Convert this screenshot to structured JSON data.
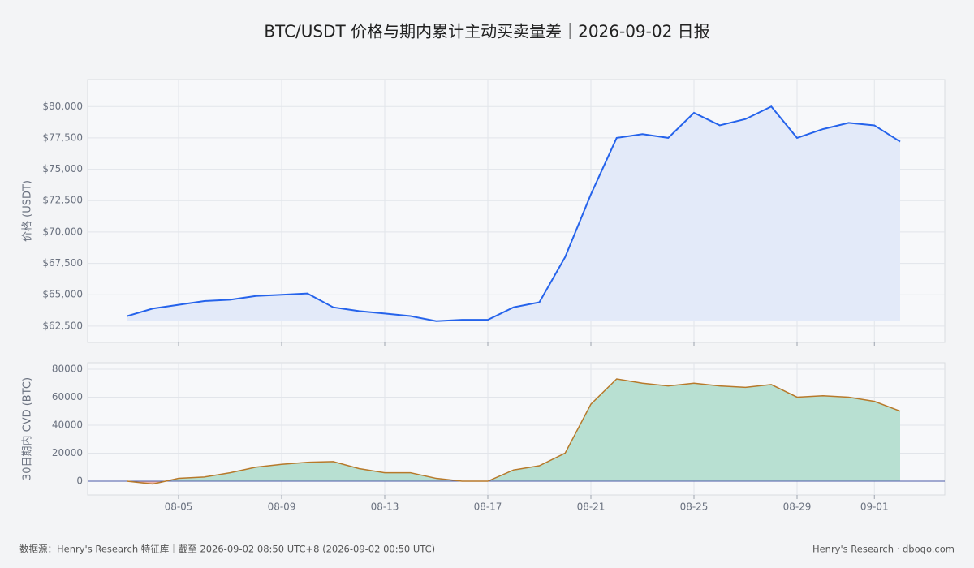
{
  "title": "BTC/USDT 价格与期内累计主动买卖量差｜2026-09-02 日报",
  "footer_left": "数据源：Henry's Research 特征库｜截至 2026-09-02 08:50 UTC+8 (2026-09-02 00:50 UTC)",
  "footer_right": "Henry's Research · dboqo.com",
  "chart_data": [
    {
      "type": "area",
      "y_label": "价格 (USDT)",
      "x": [
        "08-03",
        "08-04",
        "08-05",
        "08-06",
        "08-07",
        "08-08",
        "08-09",
        "08-10",
        "08-11",
        "08-12",
        "08-13",
        "08-14",
        "08-15",
        "08-16",
        "08-17",
        "08-18",
        "08-19",
        "08-20",
        "08-21",
        "08-22",
        "08-23",
        "08-24",
        "08-25",
        "08-26",
        "08-27",
        "08-28",
        "08-29",
        "08-30",
        "08-31",
        "09-01",
        "09-02"
      ],
      "xticks": [
        "08-05",
        "08-09",
        "08-13",
        "08-17",
        "08-21",
        "08-25",
        "08-29",
        "09-01"
      ],
      "series": [
        {
          "name": "BTC/USDT",
          "color": "#2563eb",
          "fill": "#e3eaf9",
          "values": [
            63300,
            63900,
            64200,
            64500,
            64600,
            64900,
            65000,
            65100,
            64000,
            63700,
            63500,
            63300,
            62900,
            63000,
            63000,
            64000,
            64400,
            68000,
            73000,
            77500,
            77800,
            77500,
            79500,
            78500,
            79000,
            80000,
            77500,
            78200,
            78700,
            78500,
            77200
          ]
        }
      ],
      "ylim": [
        61200,
        82150
      ],
      "yticks": [
        {
          "value": 62500,
          "label": "$62,500"
        },
        {
          "value": 65000,
          "label": "$65,000"
        },
        {
          "value": 67500,
          "label": "$67,500"
        },
        {
          "value": 70000,
          "label": "$70,000"
        },
        {
          "value": 72500,
          "label": "$72,500"
        },
        {
          "value": 75000,
          "label": "$75,000"
        },
        {
          "value": 77500,
          "label": "$77,500"
        },
        {
          "value": 80000,
          "label": "$80,000"
        }
      ],
      "grid": true
    },
    {
      "type": "signed-area",
      "y_label": "30日期内 CVD (BTC)",
      "x": [
        "08-03",
        "08-04",
        "08-05",
        "08-06",
        "08-07",
        "08-08",
        "08-09",
        "08-10",
        "08-11",
        "08-12",
        "08-13",
        "08-14",
        "08-15",
        "08-16",
        "08-17",
        "08-18",
        "08-19",
        "08-20",
        "08-21",
        "08-22",
        "08-23",
        "08-24",
        "08-25",
        "08-26",
        "08-27",
        "08-28",
        "08-29",
        "08-30",
        "08-31",
        "09-01",
        "09-02"
      ],
      "xticks": [
        "08-05",
        "08-09",
        "08-13",
        "08-17",
        "08-21",
        "08-25",
        "08-29",
        "09-01"
      ],
      "series": [
        {
          "name": "CVD",
          "color": "#b7792a",
          "positive_color": "#b8e0d2",
          "negative_color": "#f0b4a8",
          "values": [
            0,
            -2000,
            2000,
            3000,
            6000,
            10000,
            12000,
            13500,
            14000,
            9000,
            6000,
            6000,
            2000,
            0,
            0,
            8000,
            11000,
            20000,
            55000,
            73000,
            70000,
            68000,
            70000,
            68000,
            67000,
            69000,
            60000,
            61000,
            60000,
            57000,
            50000
          ]
        }
      ],
      "ylim": [
        -9850,
        84600
      ],
      "yticks": [
        0,
        20000,
        40000,
        60000,
        80000
      ],
      "zero_line_color": "#4b5aa8",
      "grid": true
    }
  ]
}
